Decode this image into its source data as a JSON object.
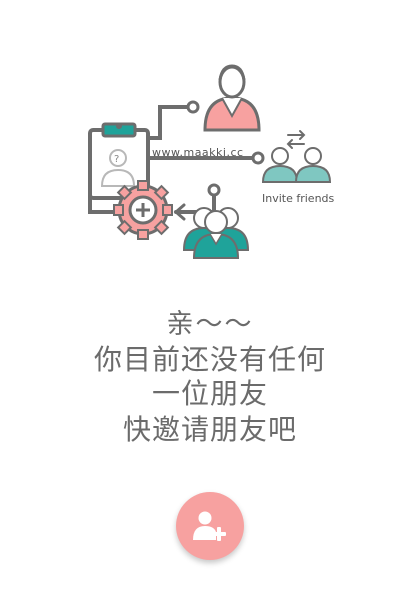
{
  "illustration": {
    "url_text": "www.maakki.cc",
    "invite_label": "Invite friends"
  },
  "message": {
    "line1": "亲～～",
    "line2": "你目前还没有任何",
    "line3": "一位朋友",
    "line4": "快邀请朋友吧"
  },
  "colors": {
    "accent_pink": "#f7a1a0",
    "teal": "#1fa39a",
    "line_gray": "#6d6d6d"
  },
  "icons": [
    "clipboard-icon",
    "gear-icon",
    "woman-avatar-icon",
    "people-group-icon",
    "friends-exchange-icon",
    "add-friend-icon"
  ]
}
